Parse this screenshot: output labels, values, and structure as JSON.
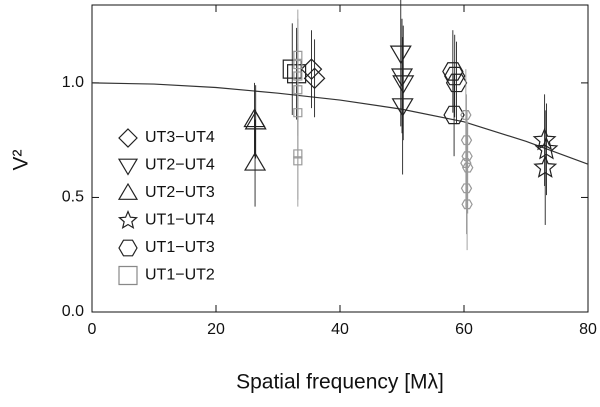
{
  "chart_data": {
    "type": "scatter",
    "xlabel": "Spatial frequency [Mλ]",
    "ylabel": "V²",
    "xlim": [
      0,
      80
    ],
    "ylim": [
      0,
      1.34
    ],
    "xticks": [
      0,
      20,
      40,
      60,
      80
    ],
    "yticks": [
      {
        "value": 0,
        "label": "0.0"
      },
      {
        "value": 0.5,
        "label": "0.5"
      },
      {
        "value": 1,
        "label": "1.0"
      }
    ],
    "legend": "left",
    "model": {
      "color": "#333",
      "x": [
        0,
        10,
        20,
        30,
        40,
        50,
        60,
        70,
        80
      ],
      "values": [
        1.0,
        0.995,
        0.98,
        0.955,
        0.925,
        0.885,
        0.83,
        0.745,
        0.645
      ]
    },
    "series": [
      {
        "name": "UT3−UT4",
        "marker": "diamond",
        "color": "#222",
        "x": [
          35.4,
          35.9
        ],
        "values": [
          1.06,
          1.02
        ],
        "errors": [
          0.17,
          0.17
        ],
        "marker_sizes": [
          10,
          10
        ],
        "marker_colors": [
          "#222",
          "#222"
        ]
      },
      {
        "name": "UT2−UT4",
        "marker": "triangle-down",
        "color": "#222",
        "x": [
          49.8,
          50.0,
          50.2,
          50.1
        ],
        "values": [
          1.13,
          1.03,
          1.0,
          0.9
        ],
        "errors": [
          0.32,
          0.25,
          0.25,
          0.3
        ],
        "marker_sizes": [
          10,
          10,
          10,
          10
        ],
        "marker_colors": [
          "#222",
          "#222",
          "#222",
          "#222"
        ]
      },
      {
        "name": "UT2−UT3",
        "marker": "triangle-up",
        "color": "#222",
        "x": [
          26.2,
          26.4,
          26.3
        ],
        "values": [
          0.84,
          0.83,
          0.65
        ],
        "errors": [
          0.16,
          0.16,
          0.19
        ],
        "marker_sizes": [
          10,
          10,
          10
        ],
        "marker_colors": [
          "#222",
          "#222",
          "#222"
        ]
      },
      {
        "name": "UT1−UT4",
        "marker": "star",
        "color": "#222",
        "x": [
          73.0,
          73.3,
          73.1
        ],
        "values": [
          0.75,
          0.71,
          0.63
        ],
        "errors": [
          0.2,
          0.2,
          0.25
        ],
        "marker_sizes": [
          11,
          11,
          11
        ],
        "marker_colors": [
          "#222",
          "#222",
          "#222"
        ]
      },
      {
        "name": "UT1−UT3",
        "marker": "hexagon",
        "color": "#222",
        "x": [
          58.2,
          58.5,
          58.8,
          58.4,
          60.3,
          60.4,
          60.5,
          60.3,
          60.6,
          60.4,
          60.5
        ],
        "values": [
          1.05,
          1.03,
          1.0,
          0.86,
          0.86,
          0.75,
          0.68,
          0.65,
          0.63,
          0.54,
          0.47
        ],
        "errors": [
          0.18,
          0.18,
          0.18,
          0.18,
          0.2,
          0.2,
          0.2,
          0.2,
          0.2,
          0.2,
          0.2
        ],
        "marker_sizes": [
          10,
          10,
          10,
          10,
          5,
          5,
          5,
          5,
          5,
          5,
          5
        ],
        "marker_colors": [
          "#222",
          "#222",
          "#222",
          "#222",
          "#999",
          "#999",
          "#999",
          "#999",
          "#999",
          "#999",
          "#999"
        ]
      },
      {
        "name": "UT1−UT2",
        "marker": "square",
        "color": "#888",
        "x": [
          32.3,
          33.0,
          33.2,
          33.2,
          33.2,
          33.2,
          33.2,
          33.2,
          33.2
        ],
        "values": [
          1.06,
          1.04,
          1.12,
          1.08,
          1.03,
          0.97,
          0.87,
          0.69,
          0.66
        ],
        "errors": [
          0.2,
          0.2,
          0.2,
          0.2,
          0.2,
          0.2,
          0.2,
          0.2,
          0.2
        ],
        "marker_sizes": [
          9,
          9,
          4,
          4,
          4,
          4,
          4,
          4,
          4
        ],
        "marker_colors": [
          "#222",
          "#222",
          "#999",
          "#999",
          "#999",
          "#999",
          "#999",
          "#999",
          "#999"
        ]
      }
    ]
  }
}
